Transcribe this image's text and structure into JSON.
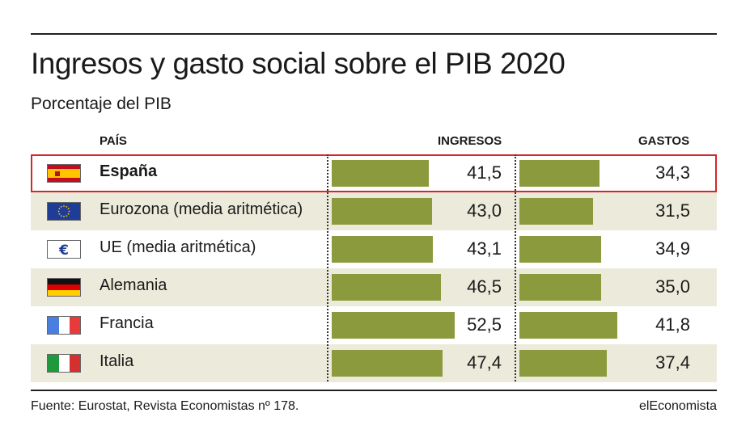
{
  "title": "Ingresos y gasto social sobre el PIB 2020",
  "subtitle": "Porcentaje del PIB",
  "headers": {
    "country": "PAÍS",
    "ingresos": "INGRESOS",
    "gastos": "GASTOS"
  },
  "source": "Fuente: Eurostat, Revista Economistas nº 178.",
  "brand": "elEconomista",
  "colors": {
    "bar": "#8b9a3c",
    "row_shade": "#ecebdb",
    "highlight": "#d6262c"
  },
  "chart_data": {
    "type": "bar",
    "title": "Ingresos y gasto social sobre el PIB 2020",
    "subtitle": "Porcentaje del PIB",
    "categories": [
      "España",
      "Eurozona (media aritmética)",
      "UE (media aritmética)",
      "Alemania",
      "Francia",
      "Italia"
    ],
    "flags": [
      "spain-flag",
      "eu-flag",
      "euro-sign",
      "germany-flag",
      "france-flag",
      "italy-flag"
    ],
    "series": [
      {
        "name": "INGRESOS",
        "values": [
          41.5,
          43.0,
          43.1,
          46.5,
          52.5,
          47.4
        ]
      },
      {
        "name": "GASTOS",
        "values": [
          34.3,
          31.5,
          34.9,
          35.0,
          41.8,
          37.4
        ]
      }
    ],
    "value_labels": {
      "ingresos": [
        "41,5",
        "43,0",
        "43,1",
        "46,5",
        "52,5",
        "47,4"
      ],
      "gastos": [
        "34,3",
        "31,5",
        "34,9",
        "35,0",
        "41,8",
        "37,4"
      ]
    },
    "highlighted_category": "España",
    "shaded_rows": [
      1,
      3,
      5
    ]
  }
}
